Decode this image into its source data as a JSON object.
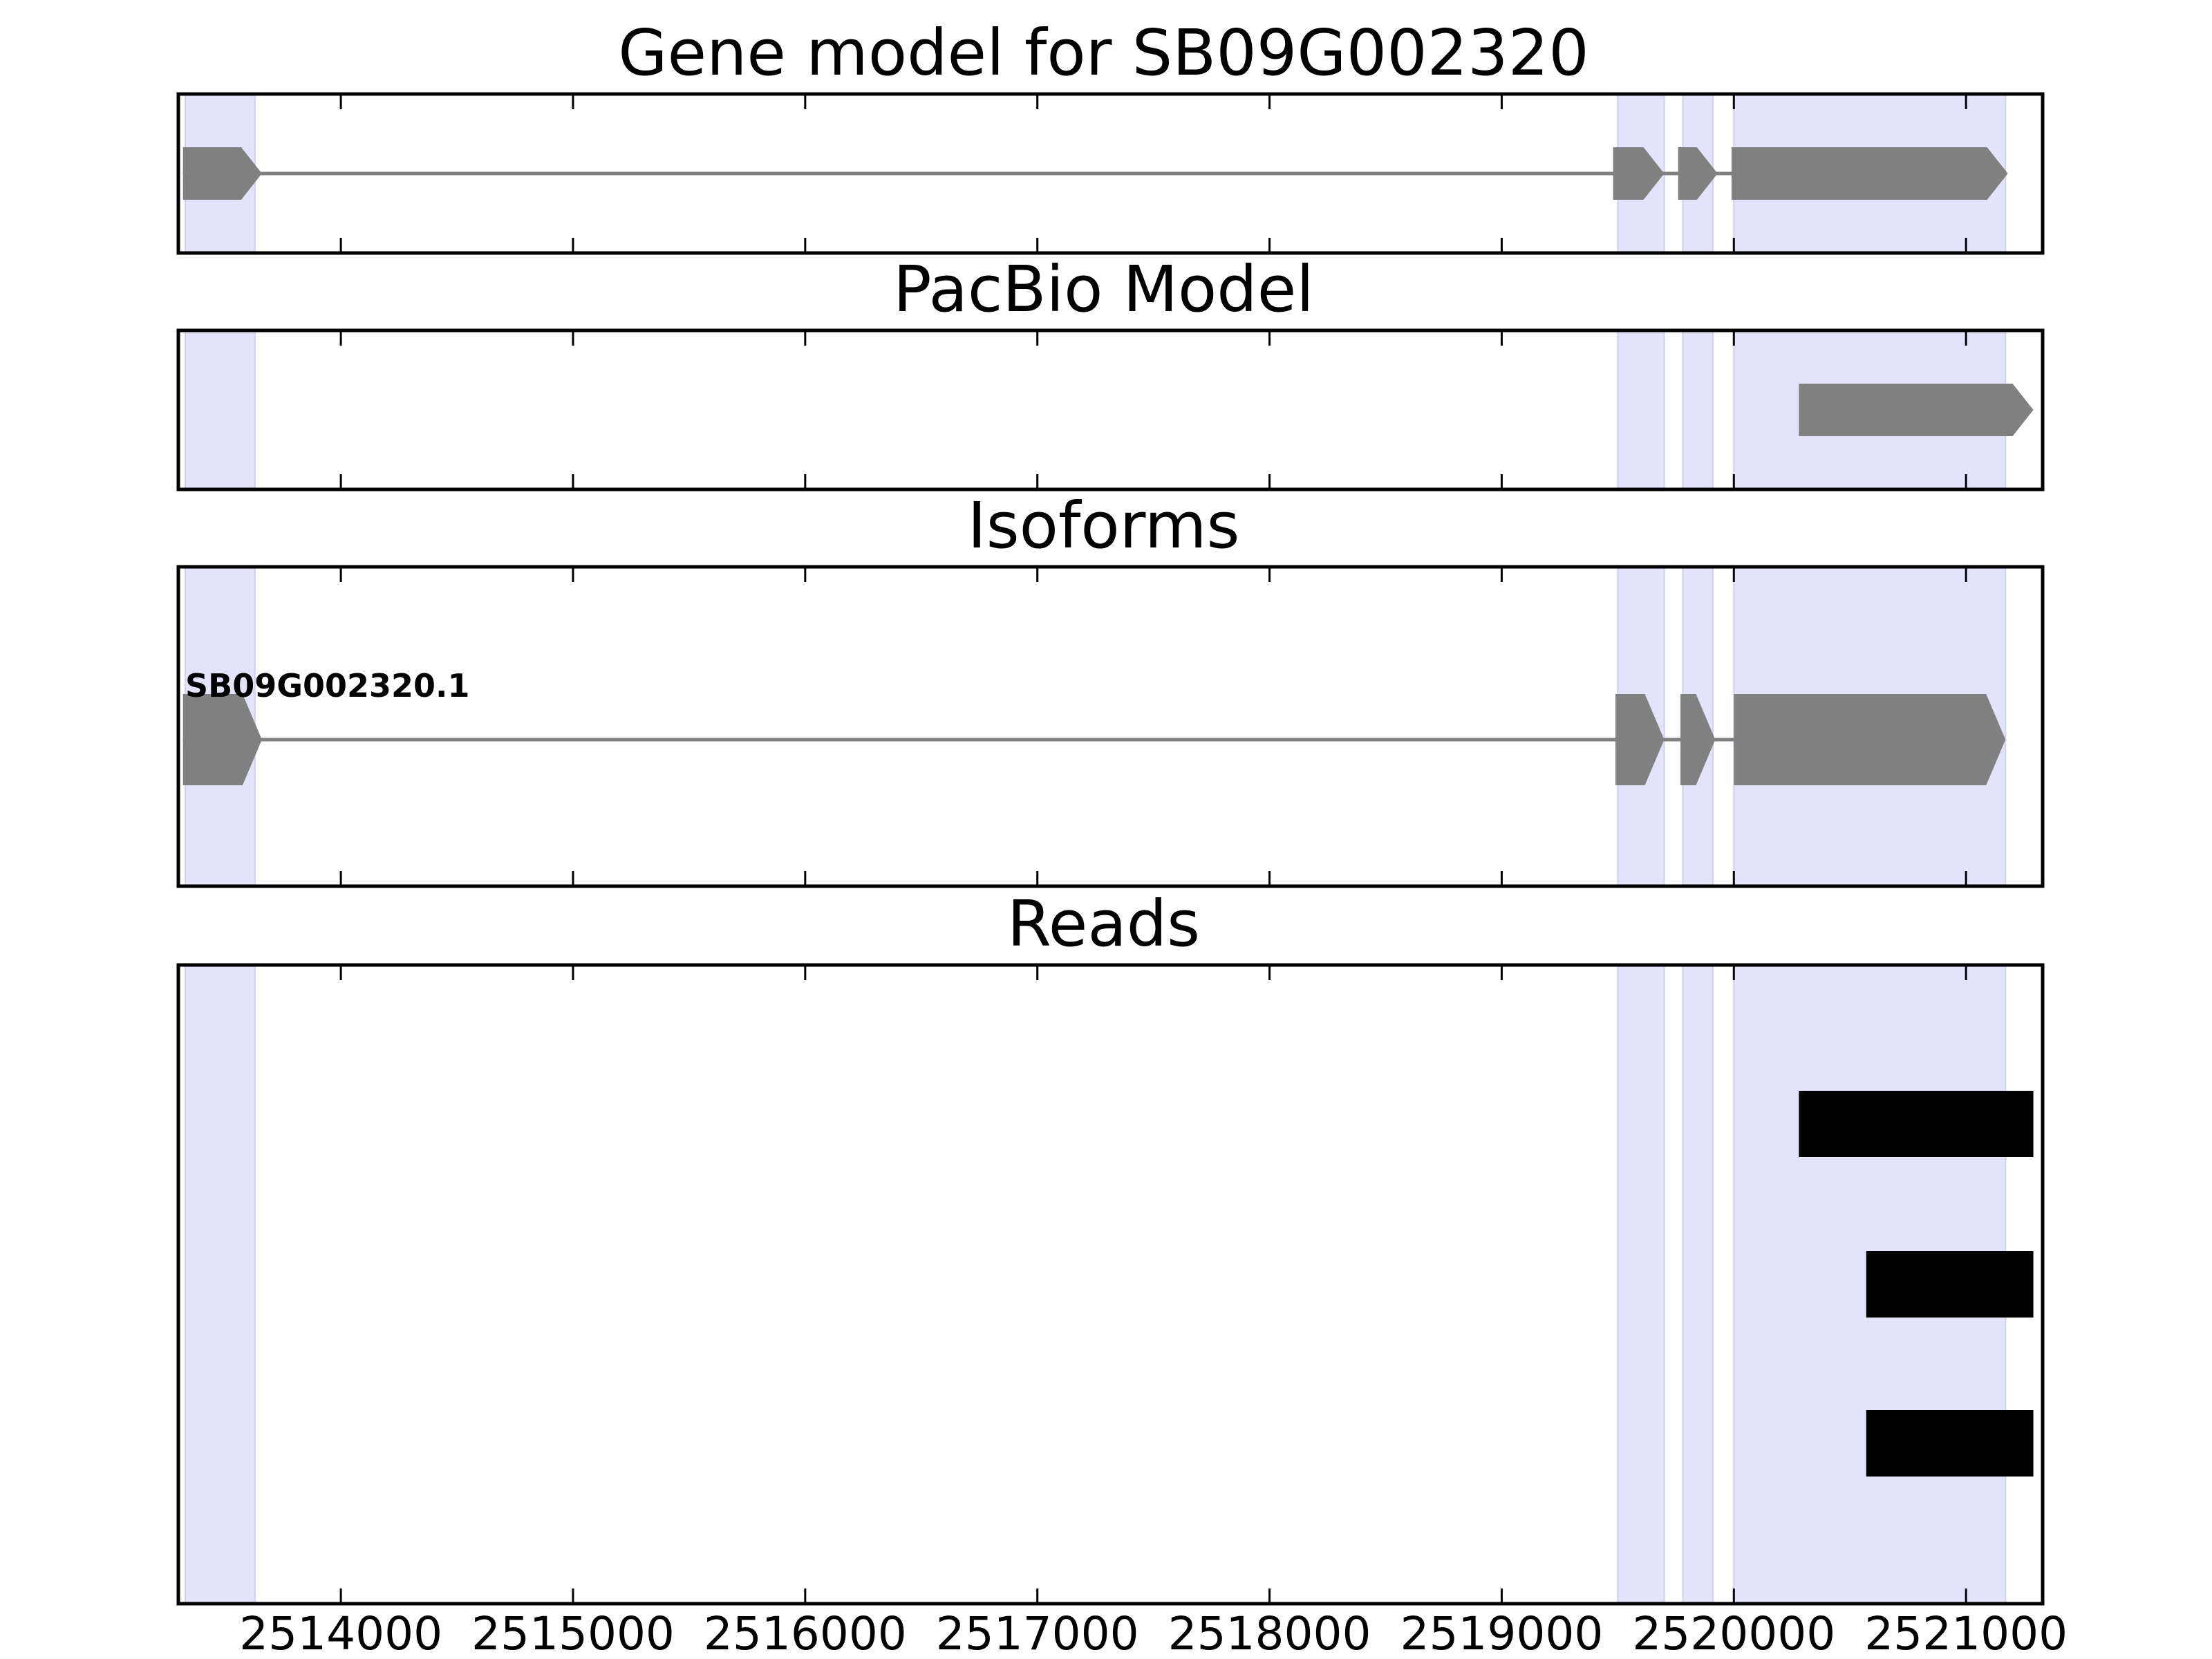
{
  "chart_data": {
    "type": "gene-track",
    "xlim": [
      2513300,
      2521330
    ],
    "x_ticks": [
      2514000,
      2515000,
      2516000,
      2517000,
      2518000,
      2519000,
      2520000,
      2521000
    ],
    "x_tick_labels": [
      "2514000",
      "2515000",
      "2516000",
      "2517000",
      "2518000",
      "2519000",
      "2520000",
      "2521000"
    ],
    "exon_highlights": [
      {
        "start": 2513330,
        "end": 2513630
      },
      {
        "start": 2519500,
        "end": 2519700
      },
      {
        "start": 2519780,
        "end": 2519910
      },
      {
        "start": 2520000,
        "end": 2521170
      }
    ],
    "highlight_color": "#e3e3fc",
    "feature_color": "#808080",
    "read_color": "#000000",
    "panels": [
      {
        "title": "Gene model for SB09G002320",
        "strand": "+",
        "intron_line": [
          2513320,
          2520000
        ],
        "exons": [
          {
            "start": 2513320,
            "end": 2513660
          },
          {
            "start": 2519480,
            "end": 2519700
          },
          {
            "start": 2519760,
            "end": 2519930
          },
          {
            "start": 2519990,
            "end": 2521180
          }
        ]
      },
      {
        "title": "PacBio Model",
        "strand": "+",
        "exons": [
          {
            "start": 2520280,
            "end": 2521290
          }
        ]
      },
      {
        "title": "Isoforms",
        "strand": "+",
        "isoform_label": "SB09G002320.1",
        "intron_line": [
          2513320,
          2520000
        ],
        "exons": [
          {
            "start": 2513320,
            "end": 2513660
          },
          {
            "start": 2519490,
            "end": 2519700
          },
          {
            "start": 2519770,
            "end": 2519920
          },
          {
            "start": 2520000,
            "end": 2521170
          }
        ]
      },
      {
        "title": "Reads",
        "reads": [
          {
            "start": 2520280,
            "end": 2521290
          },
          {
            "start": 2520570,
            "end": 2521290
          },
          {
            "start": 2520570,
            "end": 2521290
          }
        ]
      }
    ]
  }
}
